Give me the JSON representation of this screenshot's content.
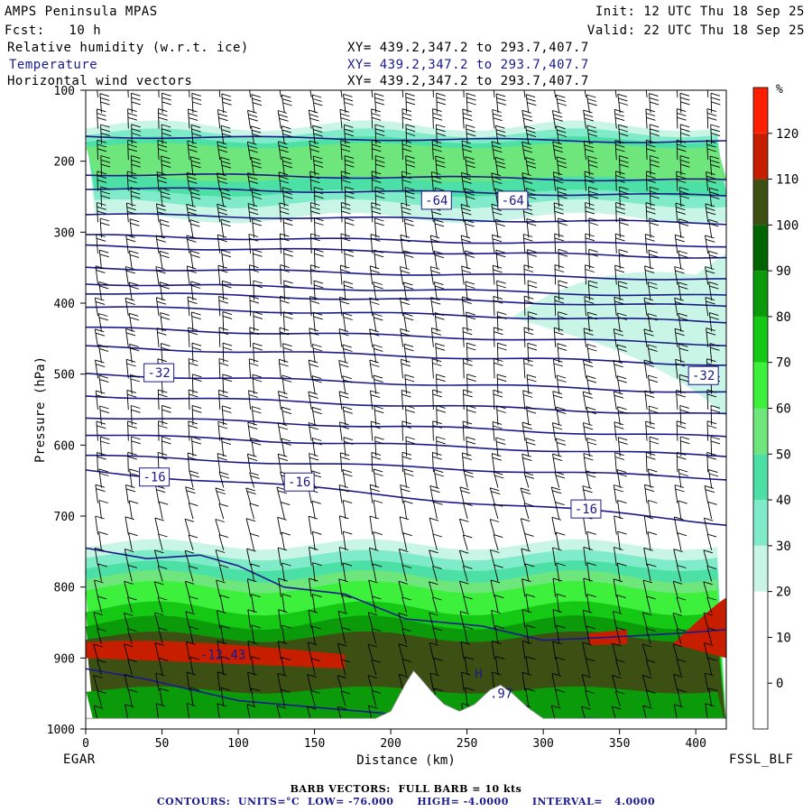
{
  "header": {
    "model": "AMPS Peninsula MPAS",
    "forecast": "Fcst:   10 h",
    "init": "Init: 12 UTC Thu 18 Sep 25",
    "valid": "Valid: 22 UTC Thu 18 Sep 25",
    "fields": [
      {
        "name": "Relative humidity (w.r.t. ice)",
        "xy": "XY= 439.2,347.2 to 293.7,407.7",
        "color": "#000000"
      },
      {
        "name": "Temperature",
        "xy": "XY= 439.2,347.2 to 293.7,407.7",
        "color": "#1a1a8c"
      },
      {
        "name": "Horizontal wind vectors",
        "xy": "XY= 439.2,347.2 to 293.7,407.7",
        "color": "#000000"
      }
    ]
  },
  "chart_data": {
    "type": "cross-section",
    "xlabel": "Distance (km)",
    "ylabel": "Pressure (hPa)",
    "xlim": [
      0,
      420
    ],
    "ylim": [
      1000,
      100
    ],
    "x_ticks": [
      0,
      50,
      100,
      150,
      200,
      250,
      300,
      350,
      400
    ],
    "y_ticks": [
      100,
      200,
      300,
      400,
      500,
      600,
      700,
      800,
      900,
      1000
    ],
    "left_endpoint": "EGAR",
    "right_endpoint": "FSSL_BLF",
    "colorbar": {
      "unit": "%",
      "levels": [
        0,
        10,
        20,
        30,
        40,
        50,
        60,
        70,
        80,
        90,
        100,
        110,
        120
      ],
      "colors": [
        "#ffffff",
        "#ffffff",
        "#ffffff",
        "#c8f5e6",
        "#80ebc8",
        "#4de0a6",
        "#6ee67c",
        "#3cf03c",
        "#14c814",
        "#0a9a0a",
        "#006400",
        "#3c5014",
        "#c81e00",
        "#ff1e00"
      ]
    },
    "contour_labels": [
      {
        "text": "-64",
        "x": 230,
        "p": 255
      },
      {
        "text": "-64",
        "x": 280,
        "p": 255
      },
      {
        "text": "-32",
        "x": 48,
        "p": 498
      },
      {
        "text": "-32",
        "x": 405,
        "p": 502
      },
      {
        "text": "-16",
        "x": 45,
        "p": 645
      },
      {
        "text": "-16",
        "x": 140,
        "p": 652
      },
      {
        "text": "-16",
        "x": 328,
        "p": 690
      },
      {
        "text": "-12.43",
        "x": 75,
        "p": 895
      },
      {
        "text": "H",
        "x": 255,
        "p": 922
      },
      {
        "text": ".97",
        "x": 265,
        "p": 950
      }
    ],
    "temperature_contours": {
      "units": "°C",
      "low": -76.0,
      "high": -4.0,
      "interval": 4.0
    }
  },
  "footer": {
    "barb": "BARB VECTORS:  FULL BARB = 10 kts",
    "contours": "CONTOURS:  UNITS=°C  LOW= -76.000      HIGH= -4.0000      INTERVAL=   4.0000"
  }
}
